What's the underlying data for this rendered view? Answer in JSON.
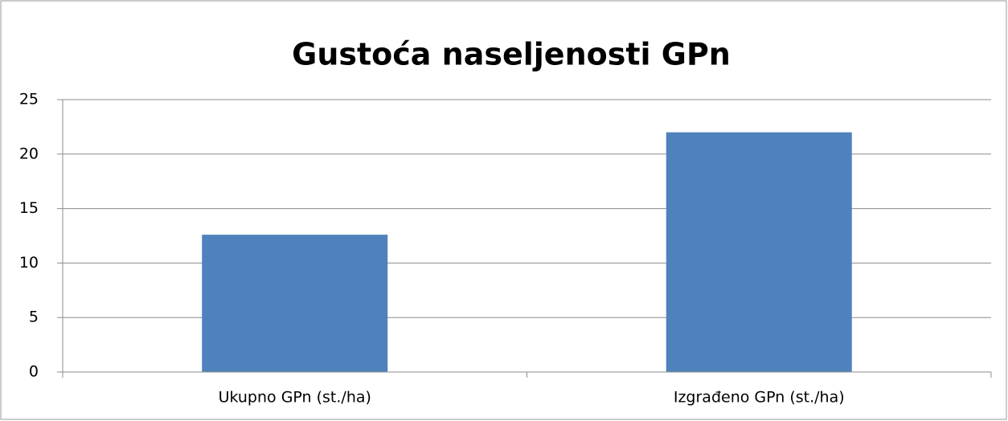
{
  "chart_data": {
    "type": "bar",
    "title": "Gustoća naseljenosti GPn",
    "categories": [
      "Ukupno GPn (st./ha)",
      "Izgrađeno GPn (st./ha)"
    ],
    "values": [
      12.6,
      22
    ],
    "color": "#4f81bd",
    "ylim": [
      0,
      25
    ],
    "yticks": [
      0,
      5,
      10,
      15,
      20,
      25
    ],
    "grid": true
  }
}
